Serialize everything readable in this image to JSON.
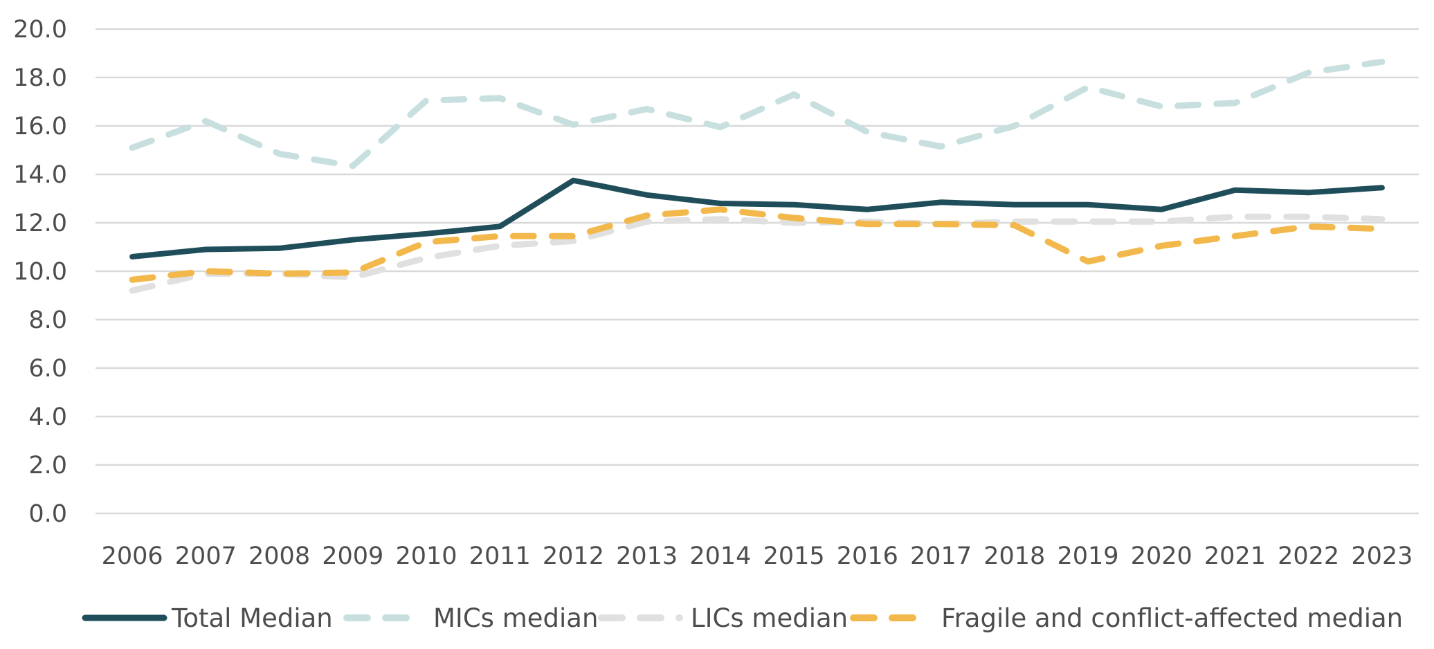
{
  "chart_data": {
    "type": "line",
    "title": "",
    "xlabel": "",
    "ylabel": "",
    "categories": [
      "2006",
      "2007",
      "2008",
      "2009",
      "2010",
      "2011",
      "2012",
      "2013",
      "2014",
      "2015",
      "2016",
      "2017",
      "2018",
      "2019",
      "2020",
      "2021",
      "2022",
      "2023"
    ],
    "ylim": [
      0,
      20
    ],
    "yticks": [
      "0.0",
      "2.0",
      "4.0",
      "6.0",
      "8.0",
      "10.0",
      "12.0",
      "14.0",
      "16.0",
      "18.0",
      "20.0"
    ],
    "grid": true,
    "legend_position": "bottom",
    "series": [
      {
        "name": "Total Median",
        "style": "solid",
        "color": "#1f4e5a",
        "values": [
          10.6,
          10.9,
          10.95,
          11.3,
          11.55,
          11.85,
          13.75,
          13.15,
          12.8,
          12.75,
          12.55,
          12.85,
          12.75,
          12.75,
          12.55,
          13.35,
          13.25,
          13.45
        ]
      },
      {
        "name": "MICs median",
        "style": "dashed",
        "color": "#c8dfe0",
        "values": [
          15.1,
          16.2,
          14.85,
          14.35,
          17.05,
          17.15,
          16.05,
          16.7,
          15.95,
          17.3,
          15.75,
          15.15,
          16.0,
          17.6,
          16.8,
          16.95,
          18.2,
          18.65
        ]
      },
      {
        "name": "LICs median",
        "style": "dashed",
        "color": "#e0e0e0",
        "values": [
          9.2,
          9.9,
          9.9,
          9.75,
          10.55,
          11.05,
          11.25,
          12.05,
          12.15,
          12.0,
          12.05,
          11.95,
          12.05,
          12.05,
          12.05,
          12.25,
          12.25,
          12.15
        ]
      },
      {
        "name": "Fragile and conflict-affected median",
        "style": "dashed",
        "color": "#f2b84b",
        "values": [
          9.65,
          10.0,
          9.9,
          9.95,
          11.2,
          11.45,
          11.45,
          12.3,
          12.55,
          12.2,
          11.95,
          11.95,
          11.9,
          10.4,
          11.05,
          11.45,
          11.85,
          11.75
        ]
      }
    ]
  }
}
